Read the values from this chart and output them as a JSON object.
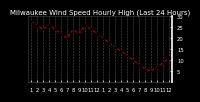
{
  "title": "Milwaukee Wind Speed Hourly High (Last 24 Hours)",
  "y_values": [
    28,
    26,
    24,
    26,
    24,
    22,
    20,
    24,
    22,
    26,
    24,
    22,
    20,
    18,
    16,
    14,
    12,
    10,
    8,
    6,
    5,
    7,
    9,
    11
  ],
  "x_labels": [
    "1",
    "2",
    "3",
    "4",
    "5",
    "6",
    "7",
    "8",
    "9",
    "10",
    "11",
    "12",
    "1",
    "2",
    "3",
    "4",
    "5",
    "6",
    "7",
    "8",
    "9",
    "10",
    "11",
    "12"
  ],
  "ylim": [
    0,
    30
  ],
  "yticks": [
    5,
    10,
    15,
    20,
    25,
    30
  ],
  "ytick_labels": [
    "5 ",
    "10",
    "15",
    "20",
    "25",
    "30"
  ],
  "line_color": "#cc0000",
  "marker_color": "#000000",
  "plot_bg_color": "#000000",
  "fig_bg_color": "#000000",
  "grid_color": "#555555",
  "title_color": "#ffffff",
  "tick_color": "#ffffff",
  "title_fontsize": 5.0,
  "tick_fontsize": 3.8,
  "right_spine_color": "#ffffff"
}
